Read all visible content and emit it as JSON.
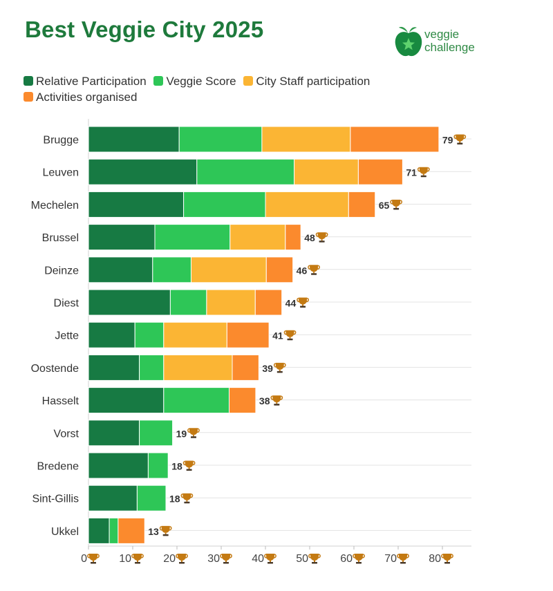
{
  "header": {
    "title": "Best Veggie City 2025"
  },
  "logo": {
    "line1": "veggie",
    "line2": "challenge"
  },
  "colors": {
    "relative_participation": "#177a43",
    "veggie_score": "#2ec657",
    "city_staff": "#fbb534",
    "activities": "#fb8a2d",
    "gridline": "#e3e3e3",
    "trophy": "#c47a12"
  },
  "chart_data": {
    "type": "bar",
    "orientation": "horizontal",
    "stacked": true,
    "title": "Best Veggie City 2025",
    "categories": [
      "Brugge",
      "Leuven",
      "Mechelen",
      "Brussel",
      "Deinze",
      "Diest",
      "Jette",
      "Oostende",
      "Hasselt",
      "Vorst",
      "Bredene",
      "Sint-Gillis",
      "Ukkel"
    ],
    "series": [
      {
        "name": "Relative Participation",
        "color": "#177a43",
        "values": [
          20.5,
          24.5,
          21.5,
          15.0,
          14.5,
          18.5,
          10.5,
          11.5,
          17.0,
          11.5,
          13.5,
          11.0,
          4.7
        ]
      },
      {
        "name": "Veggie Score",
        "color": "#2ec657",
        "values": [
          18.7,
          22.0,
          18.5,
          17.0,
          8.7,
          8.2,
          6.5,
          5.5,
          14.8,
          7.5,
          4.5,
          6.5,
          2.0
        ]
      },
      {
        "name": "City Staff participation",
        "color": "#fbb534",
        "values": [
          20.0,
          14.5,
          18.8,
          12.5,
          17.0,
          11.0,
          14.3,
          15.5,
          0,
          0,
          0,
          0,
          0
        ]
      },
      {
        "name": "Activities organised",
        "color": "#fb8a2d",
        "values": [
          20.0,
          10.0,
          6.0,
          3.5,
          6.0,
          6.0,
          9.5,
          6.0,
          6.0,
          0,
          0,
          0,
          6.0
        ]
      }
    ],
    "totals": [
      "79",
      "71",
      "65",
      "48",
      "46",
      "44",
      "41",
      "39",
      "38",
      "19",
      "18",
      "18",
      "13"
    ],
    "xlim": [
      0,
      85
    ],
    "xticks": [
      "0",
      "10",
      "20",
      "30",
      "40",
      "50",
      "60",
      "70",
      "80"
    ],
    "grid": true,
    "legend_position": "top"
  }
}
